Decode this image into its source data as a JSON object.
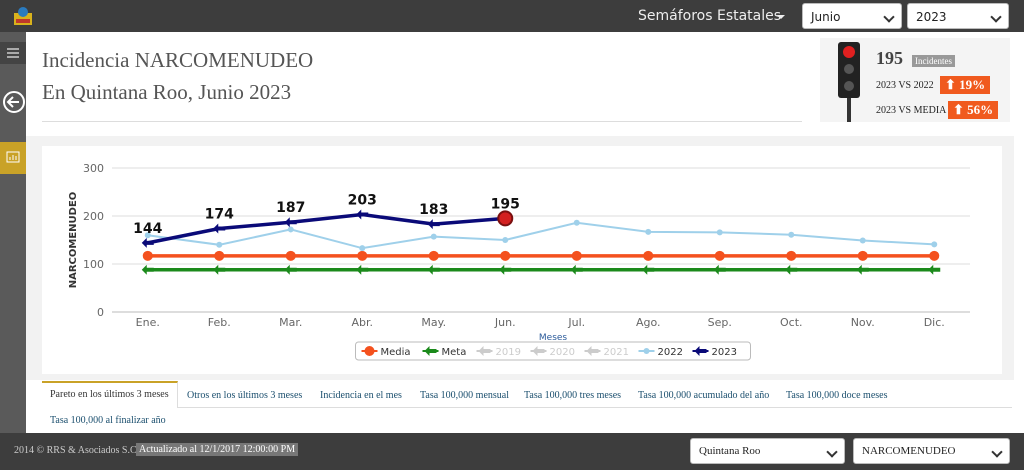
{
  "header": {
    "app_title": "Semáforos Estatales",
    "month": "Junio",
    "year": "2023"
  },
  "page_title": {
    "line1": "Incidencia NARCOMENUDEO",
    "line2": "En Quintana Roo, Junio 2023"
  },
  "summary": {
    "count": 195,
    "count_label": "Incidentes",
    "vs_prev_label": "2023 VS 2022",
    "vs_prev": "19%",
    "vs_media_label": "2023 VS MEDIA",
    "vs_media": "56%"
  },
  "chart_data": {
    "type": "line",
    "x_label": "Meses",
    "y_label": "NARCOMENUDEO",
    "categories": [
      "Ene.",
      "Feb.",
      "Mar.",
      "Abr.",
      "May.",
      "Jun.",
      "Jul.",
      "Ago.",
      "Sep.",
      "Oct.",
      "Nov.",
      "Dic."
    ],
    "ylim": [
      0,
      300
    ],
    "yticks": [
      0,
      100,
      200,
      300
    ],
    "grid": true,
    "series": [
      {
        "name": "Media",
        "color": "#f4511e",
        "marker": "circle",
        "values": [
          117,
          117,
          117,
          117,
          117,
          117,
          117,
          117,
          117,
          117,
          117,
          117
        ]
      },
      {
        "name": "Meta",
        "color": "#1b8a1b",
        "marker": "arrow",
        "values": [
          88,
          88,
          88,
          88,
          88,
          88,
          88,
          88,
          88,
          88,
          88,
          88
        ]
      },
      {
        "name": "2019",
        "color": "#cccccc",
        "hidden": true,
        "values": [
          null,
          null,
          null,
          null,
          null,
          null,
          null,
          null,
          null,
          null,
          null,
          null
        ]
      },
      {
        "name": "2020",
        "color": "#cccccc",
        "hidden": true,
        "values": [
          null,
          null,
          null,
          null,
          null,
          null,
          null,
          null,
          null,
          null,
          null,
          null
        ]
      },
      {
        "name": "2021",
        "color": "#cccccc",
        "hidden": true,
        "values": [
          null,
          null,
          null,
          null,
          null,
          null,
          null,
          null,
          null,
          null,
          null,
          null
        ]
      },
      {
        "name": "2022",
        "color": "#9fd0ea",
        "marker": "dot",
        "values": [
          160,
          140,
          172,
          133,
          157,
          150,
          186,
          167,
          166,
          161,
          149,
          141
        ]
      },
      {
        "name": "2023",
        "color": "#0a0a78",
        "marker": "arrow",
        "data_labels": true,
        "values": [
          144,
          174,
          187,
          203,
          183,
          195,
          null,
          null,
          null,
          null,
          null,
          null
        ]
      }
    ]
  },
  "tabs": [
    "Pareto en los últimos 3 meses",
    "Otros en los últimos 3 meses",
    "Incidencia en el mes",
    "Tasa 100,000 mensual",
    "Tasa 100,000 tres meses",
    "Tasa 100,000 acumulado del año",
    "Tasa 100,000 doce meses",
    "Tasa 100,000 al finalizar año"
  ],
  "footer": {
    "copyright": "2014 © RRS & Asociados S.C.",
    "updated": "Actualizado al 12/1/2017 12:00:00 PM",
    "state": "Quintana Roo",
    "crime": "NARCOMENUDEO"
  }
}
